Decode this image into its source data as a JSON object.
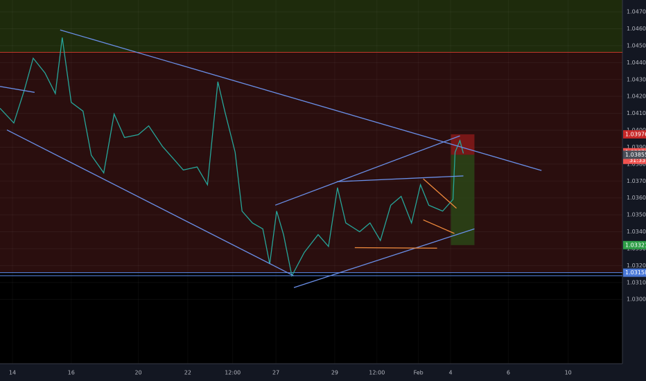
{
  "chart_data": {
    "type": "line",
    "x": [
      0,
      4,
      7,
      9.6,
      13,
      16,
      18,
      20.6,
      24,
      26.4,
      30,
      33,
      36,
      40,
      43,
      47,
      50,
      53,
      57,
      60,
      63,
      65,
      68,
      70,
      73,
      76,
      78,
      80,
      82,
      84.4,
      88,
      92,
      95,
      97.6,
      100,
      104,
      107,
      110,
      113,
      116,
      119,
      121.6,
      124,
      128,
      131,
      131.6,
      133,
      134
    ],
    "series": [
      {
        "color": "#26a69a",
        "values": [
          1.0413,
          1.04043,
          1.04235,
          1.04426,
          1.04339,
          1.04217,
          1.04548,
          1.04165,
          1.04113,
          1.03852,
          1.03748,
          1.04096,
          1.03957,
          1.03974,
          1.04026,
          1.03904,
          1.03835,
          1.03765,
          1.03783,
          1.03678,
          1.04287,
          1.04113,
          1.0387,
          1.03522,
          1.03452,
          1.03417,
          1.03209,
          1.03522,
          1.03383,
          1.03139,
          1.03278,
          1.03383,
          1.03313,
          1.03661,
          1.03452,
          1.034,
          1.03452,
          1.03348,
          1.03557,
          1.03609,
          1.03452,
          1.03678,
          1.03557,
          1.03522,
          1.03591,
          1.0387,
          1.03939,
          1.03863
        ]
      }
    ],
    "xlim": [
      0,
      180
    ],
    "xticks": [
      {
        "value": 3.6,
        "label": "14"
      },
      {
        "value": 20.6,
        "label": "16"
      },
      {
        "value": 40,
        "label": "20"
      },
      {
        "value": 54.3,
        "label": "22"
      },
      {
        "value": 67.3,
        "label": "12:00"
      },
      {
        "value": 79.8,
        "label": "27"
      },
      {
        "value": 96.8,
        "label": "29"
      },
      {
        "value": 109,
        "label": "12:00"
      },
      {
        "value": 121,
        "label": "Feb"
      },
      {
        "value": 130.3,
        "label": "4"
      },
      {
        "value": 147,
        "label": "6"
      },
      {
        "value": 164.3,
        "label": "10"
      }
    ],
    "ylim": [
      1.0262,
      1.0477
    ],
    "yticks": [
      {
        "value": 1.03,
        "label": "1.03000"
      },
      {
        "value": 1.031,
        "label": "1.03100"
      },
      {
        "value": 1.032,
        "label": "1.03200"
      },
      {
        "value": 1.033,
        "label": "1.03300"
      },
      {
        "value": 1.034,
        "label": "1.03400"
      },
      {
        "value": 1.035,
        "label": "1.03500"
      },
      {
        "value": 1.036,
        "label": "1.03600"
      },
      {
        "value": 1.037,
        "label": "1.03700"
      },
      {
        "value": 1.038,
        "label": "1.03800"
      },
      {
        "value": 1.039,
        "label": "1.03900"
      },
      {
        "value": 1.04,
        "label": "1.04000"
      },
      {
        "value": 1.041,
        "label": "1.04100"
      },
      {
        "value": 1.042,
        "label": "1.04200"
      },
      {
        "value": 1.043,
        "label": "1.04300"
      },
      {
        "value": 1.044,
        "label": "1.04400"
      },
      {
        "value": 1.045,
        "label": "1.04500"
      },
      {
        "value": 1.046,
        "label": "1.04600"
      },
      {
        "value": 1.047,
        "label": "1.04700"
      }
    ],
    "zones": [
      {
        "from": 1.04461,
        "to": 1.0477,
        "color": "#1e2b0c"
      },
      {
        "from": 1.03158,
        "to": 1.04461,
        "color": "#2a0e0e"
      },
      {
        "from": 1.0262,
        "to": 1.03158,
        "color": "#000000"
      }
    ],
    "levels": [
      {
        "value": 1.04461,
        "color": "#c0392b"
      },
      {
        "value": 1.03158,
        "color": "#5b8def"
      },
      {
        "value": 1.0314,
        "color": "#5b8def"
      }
    ],
    "trendlines": [
      {
        "x": [
          17.4,
          156.6
        ],
        "y": [
          1.04593,
          1.03762
        ],
        "color": "#6a8fe8"
      },
      {
        "x": [
          0,
          10
        ],
        "y": [
          1.04259,
          1.04224
        ],
        "color": "#6a8fe8"
      },
      {
        "x": [
          2,
          85
        ],
        "y": [
          1.04002,
          1.03139
        ],
        "color": "#6a8fe8"
      },
      {
        "x": [
          79.6,
          133
        ],
        "y": [
          1.03557,
          1.03967
        ],
        "color": "#6a8fe8"
      },
      {
        "x": [
          85,
          137.2
        ],
        "y": [
          1.0307,
          1.03417
        ],
        "color": "#6a8fe8"
      },
      {
        "x": [
          97.4,
          134
        ],
        "y": [
          1.03696,
          1.0373
        ],
        "color": "#6a8fe8"
      },
      {
        "x": [
          102.6,
          126.4
        ],
        "y": [
          1.03306,
          1.03303
        ],
        "color": "#f08a3c"
      },
      {
        "x": [
          122.4,
          132
        ],
        "y": [
          1.03713,
          1.03539
        ],
        "color": "#f08a3c"
      },
      {
        "x": [
          122.4,
          131.4
        ],
        "y": [
          1.0347,
          1.0339
        ],
        "color": "#f08a3c"
      }
    ],
    "position": {
      "x": [
        130.4,
        137.2
      ],
      "stop": 1.03976,
      "entry": 1.03855,
      "target": 1.03321
    },
    "price_tags": [
      {
        "price": 1.03976,
        "color": "#c62828"
      },
      {
        "price": 1.0387,
        "label": "1.03870",
        "color": "#ef5350",
        "timer": "31:33"
      },
      {
        "price": 1.03855,
        "color": "#4a4e58"
      },
      {
        "price": 1.03321,
        "color": "#2e9d47"
      },
      {
        "price": 1.03158,
        "color": "#4a78d8"
      }
    ]
  }
}
